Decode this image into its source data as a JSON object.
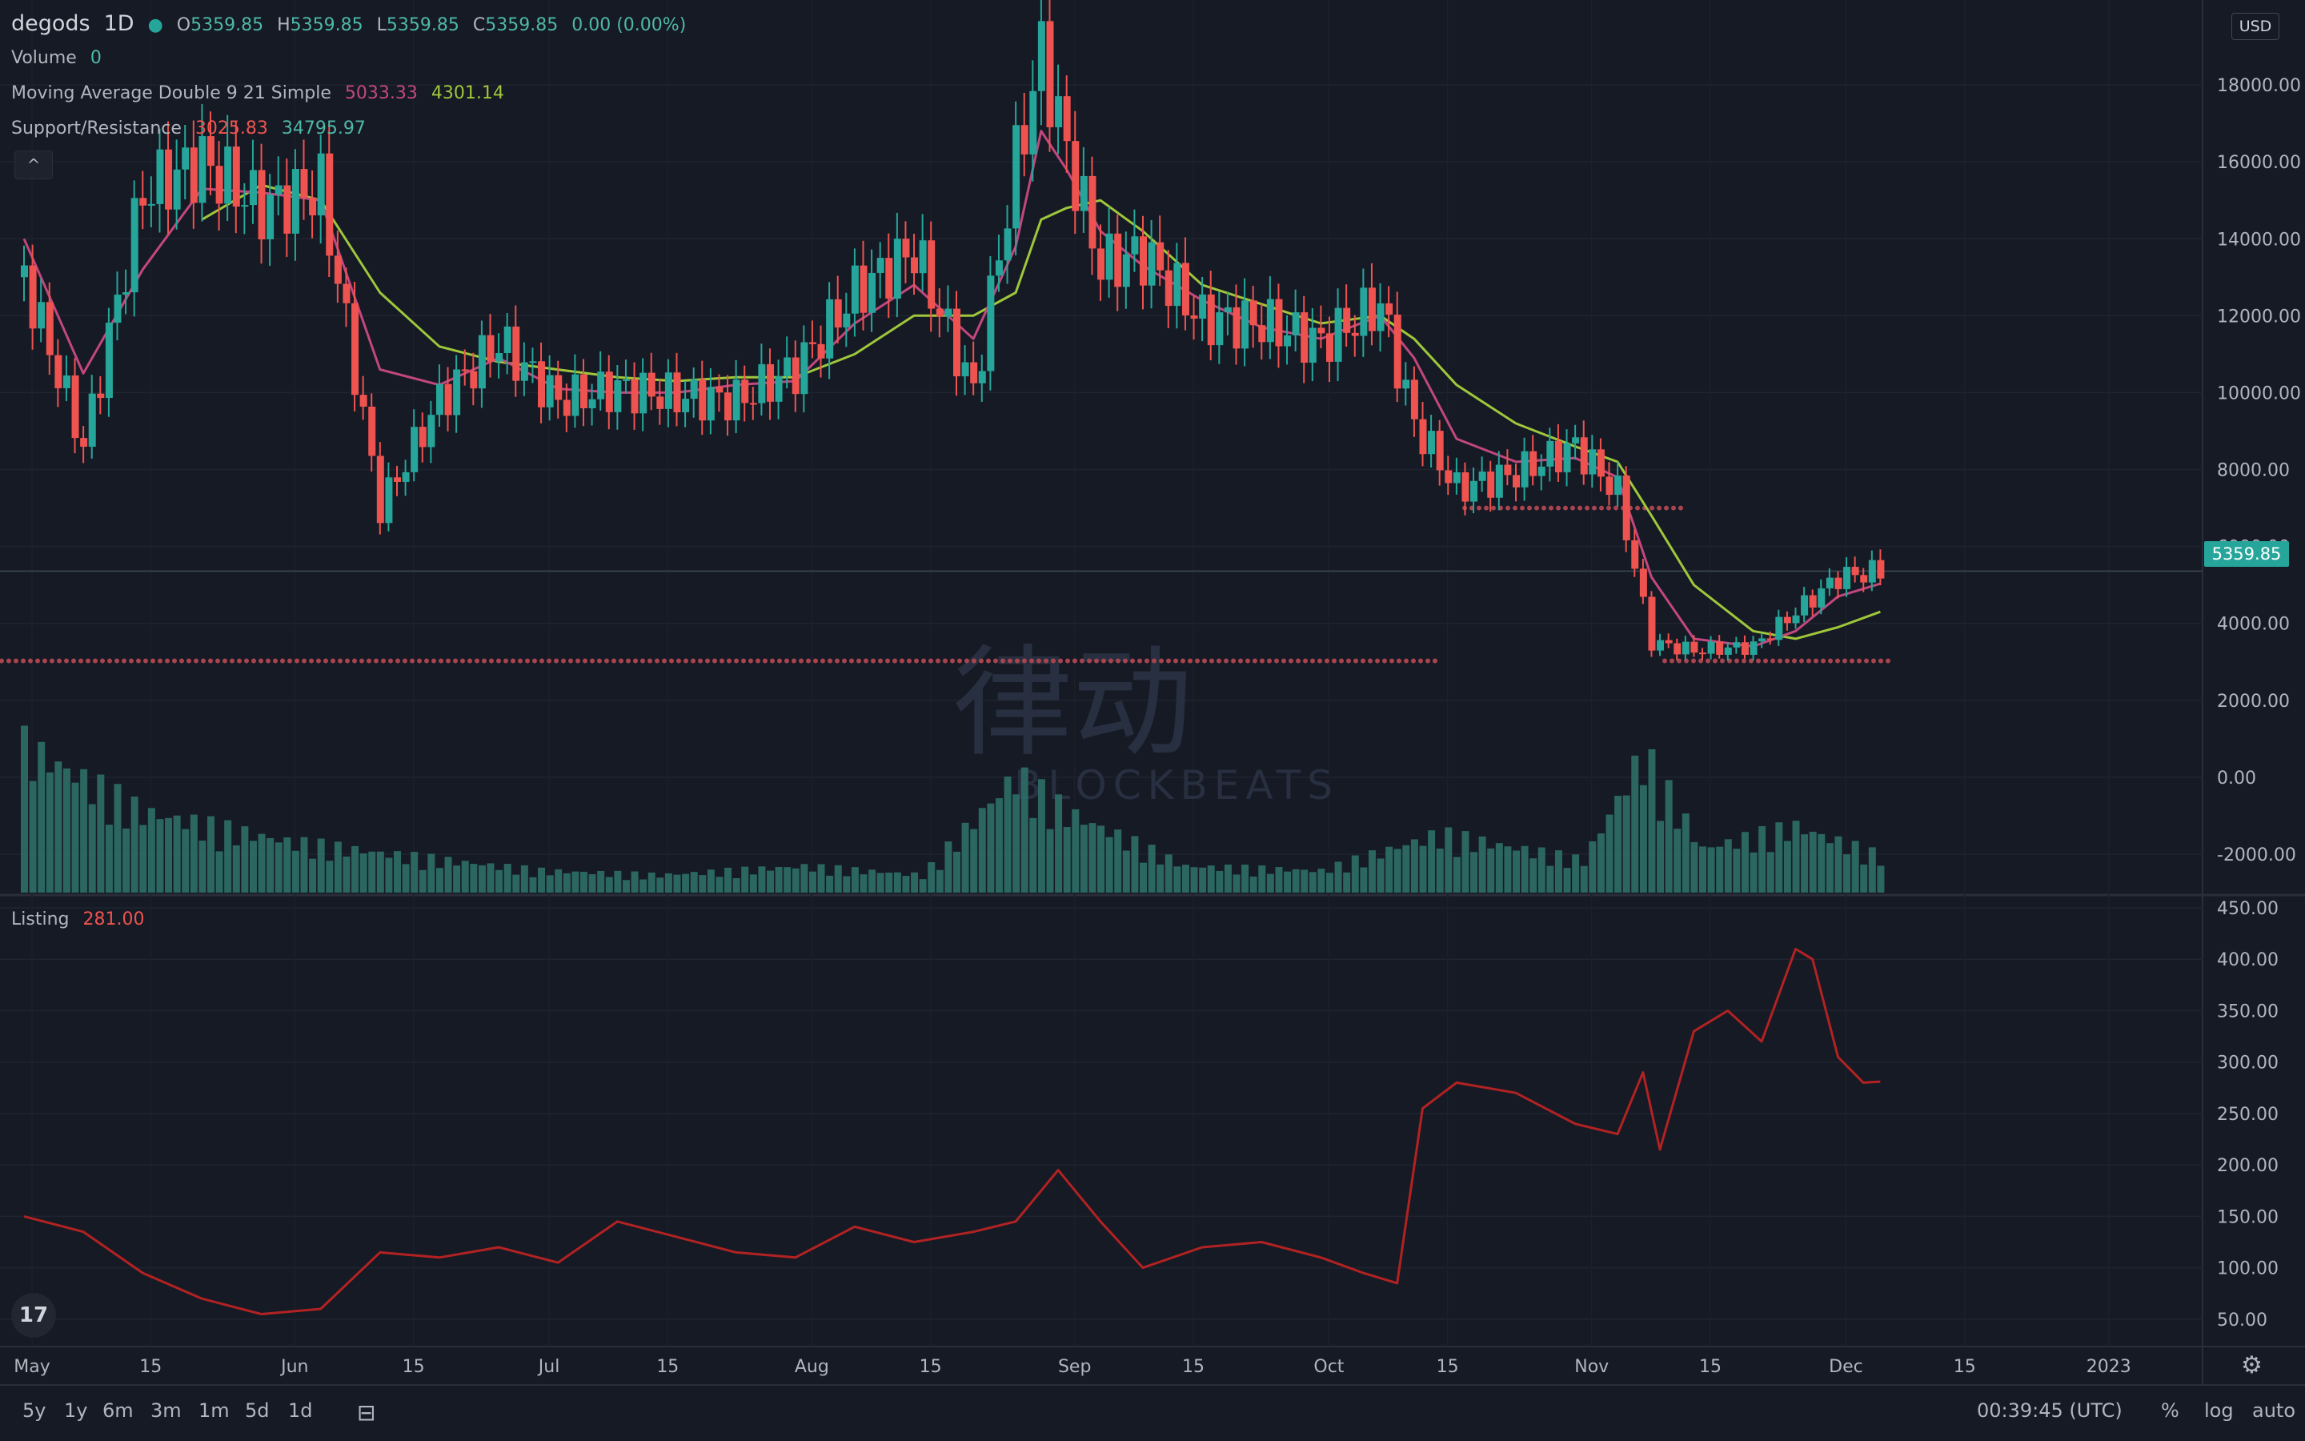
{
  "header": {
    "symbol": "degods",
    "interval": "1D",
    "ohlc": {
      "o_label": "O",
      "o": "5359.85",
      "h_label": "H",
      "h": "5359.85",
      "l_label": "L",
      "l": "5359.85",
      "c_label": "C",
      "c": "5359.85",
      "change": "0.00 (0.00%)"
    },
    "volume_label": "Volume",
    "volume_value": "0",
    "ma_label": "Moving Average Double 9 21 Simple",
    "ma_fast": "5033.33",
    "ma_slow": "4301.14",
    "sr_label": "Support/Resistance",
    "sr_support": "3025.83",
    "sr_resistance": "34795.97",
    "collapse_icon": "^"
  },
  "listing_pane": {
    "label": "Listing",
    "value": "281.00"
  },
  "currency": "USD",
  "last_price": "5359.85",
  "watermark": {
    "mark": "律动",
    "text": "BLOCKBEATS"
  },
  "logo_text": "17",
  "time_axis_labels": [
    "May",
    "15",
    "Jun",
    "15",
    "Jul",
    "15",
    "Aug",
    "15",
    "Sep",
    "15",
    "Oct",
    "15",
    "Nov",
    "15",
    "Dec",
    "15",
    "2023"
  ],
  "bottom_toolbar": {
    "ranges": [
      "5y",
      "1y",
      "6m",
      "3m",
      "1m",
      "5d",
      "1d"
    ],
    "clock": "00:39:45 (UTC)",
    "percent": "%",
    "log": "log",
    "auto": "auto"
  },
  "colors": {
    "background": "#161a25",
    "up": "#26a69a",
    "down": "#ef5350",
    "ma_fast": "#c2477f",
    "ma_slow": "#9fc73b",
    "support": "#a8444f",
    "listing": "#b22222",
    "volume": "#2d6f68"
  },
  "chart_data": [
    {
      "type": "candlestick",
      "title": "degods 1D",
      "x": [
        "2022-05-01",
        "2022-05-08",
        "2022-05-15",
        "2022-05-22",
        "2022-05-29",
        "2022-06-05",
        "2022-06-12",
        "2022-06-19",
        "2022-06-26",
        "2022-07-03",
        "2022-07-10",
        "2022-07-17",
        "2022-07-24",
        "2022-07-31",
        "2022-08-07",
        "2022-08-14",
        "2022-08-21",
        "2022-08-26",
        "2022-08-29",
        "2022-09-01",
        "2022-09-05",
        "2022-09-10",
        "2022-09-17",
        "2022-09-24",
        "2022-10-01",
        "2022-10-08",
        "2022-10-12",
        "2022-10-17",
        "2022-10-24",
        "2022-10-31",
        "2022-11-05",
        "2022-11-09",
        "2022-11-14",
        "2022-11-21",
        "2022-11-26",
        "2022-12-01",
        "2022-12-06"
      ],
      "close": [
        13000,
        8600,
        15200,
        16000,
        14800,
        15300,
        7000,
        9800,
        11300,
        9800,
        10100,
        9900,
        9800,
        10600,
        12600,
        13700,
        10000,
        16000,
        18800,
        16300,
        13300,
        13600,
        11900,
        11800,
        11300,
        12300,
        9200,
        7500,
        7900,
        8600,
        7400,
        3500,
        3300,
        3400,
        4300,
        5200,
        5359.85
      ],
      "ylim": [
        -3000,
        20000
      ],
      "y_ticks": [
        -2000,
        0,
        2000,
        4000,
        6000,
        8000,
        10000,
        12000,
        14000,
        16000,
        18000
      ],
      "moving_average_fast_9": [
        14000,
        10500,
        13200,
        15300,
        15200,
        15000,
        10600,
        10200,
        10900,
        10100,
        10000,
        10000,
        10200,
        10300,
        11800,
        12800,
        11400,
        13800,
        16800,
        15800,
        14200,
        13300,
        12400,
        11700,
        11400,
        12000,
        10900,
        8800,
        8200,
        8300,
        7800,
        5200,
        3600,
        3400,
        3800,
        4700,
        5033.33
      ],
      "moving_average_slow_21": [
        null,
        null,
        null,
        14500,
        15400,
        15000,
        12600,
        11200,
        10800,
        10600,
        10400,
        10300,
        10400,
        10400,
        11000,
        12000,
        12000,
        12600,
        14500,
        14800,
        15000,
        14200,
        12800,
        12300,
        11800,
        12000,
        11400,
        10200,
        9200,
        8600,
        8200,
        6800,
        5000,
        3800,
        3600,
        3900,
        4301.14
      ],
      "support_resistance": [
        3025.83,
        7000,
        34795.97
      ]
    },
    {
      "type": "bar",
      "title": "Volume",
      "x": [
        "2022-05-01",
        "2022-05-15",
        "2022-06-01",
        "2022-06-15",
        "2022-07-01",
        "2022-07-15",
        "2022-08-01",
        "2022-08-15",
        "2022-08-26",
        "2022-09-01",
        "2022-09-15",
        "2022-10-01",
        "2022-10-15",
        "2022-11-01",
        "2022-11-08",
        "2022-11-15",
        "2022-11-26",
        "2022-12-06"
      ],
      "values": [
        100,
        55,
        35,
        25,
        15,
        12,
        18,
        12,
        80,
        55,
        18,
        15,
        40,
        22,
        95,
        30,
        45,
        25
      ]
    },
    {
      "type": "line",
      "title": "Listing",
      "x": [
        "2022-05-01",
        "2022-05-08",
        "2022-05-15",
        "2022-05-22",
        "2022-05-29",
        "2022-06-05",
        "2022-06-12",
        "2022-06-19",
        "2022-06-26",
        "2022-07-03",
        "2022-07-10",
        "2022-07-17",
        "2022-07-24",
        "2022-07-31",
        "2022-08-07",
        "2022-08-14",
        "2022-08-21",
        "2022-08-26",
        "2022-08-31",
        "2022-09-05",
        "2022-09-10",
        "2022-09-17",
        "2022-09-24",
        "2022-10-01",
        "2022-10-06",
        "2022-10-10",
        "2022-10-13",
        "2022-10-17",
        "2022-10-24",
        "2022-10-31",
        "2022-11-05",
        "2022-11-08",
        "2022-11-10",
        "2022-11-14",
        "2022-11-18",
        "2022-11-22",
        "2022-11-26",
        "2022-11-28",
        "2022-12-01",
        "2022-12-04",
        "2022-12-06"
      ],
      "values": [
        150,
        135,
        95,
        70,
        55,
        60,
        115,
        110,
        120,
        105,
        145,
        130,
        115,
        110,
        140,
        125,
        135,
        145,
        195,
        145,
        100,
        120,
        125,
        110,
        95,
        85,
        255,
        280,
        270,
        240,
        230,
        290,
        215,
        330,
        350,
        320,
        410,
        400,
        305,
        280,
        281
      ],
      "ylim": [
        25,
        450
      ],
      "y_ticks": [
        50,
        100,
        150,
        200,
        250,
        300,
        350,
        400,
        450
      ]
    }
  ]
}
